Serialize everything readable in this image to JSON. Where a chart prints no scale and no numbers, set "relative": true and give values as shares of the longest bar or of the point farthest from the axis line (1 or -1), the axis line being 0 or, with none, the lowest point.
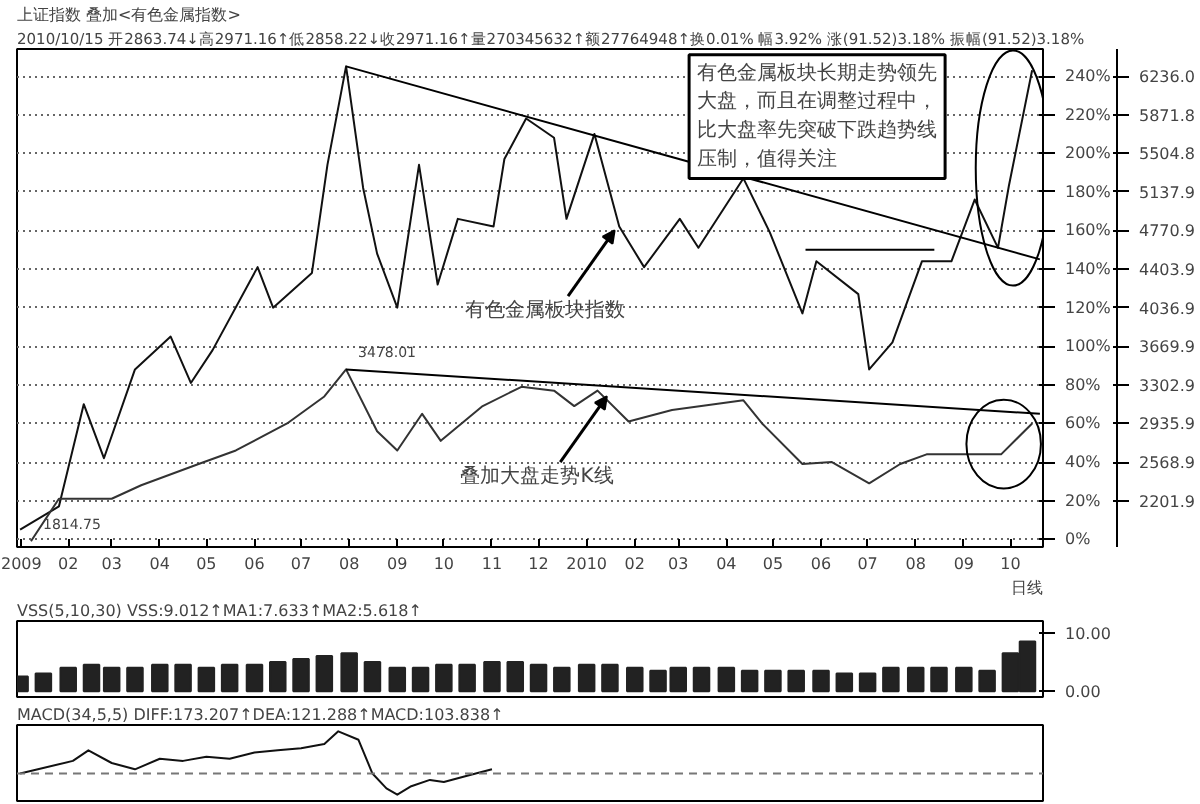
{
  "chart_data": [
    {
      "type": "line",
      "title": "上证指数 叠加<有色金属指数>",
      "subtitle": "2010/10/15 开2863.74↓高2971.16↑低2858.22↓收2971.16↑量270345632↑额27764948↑换0.01% 幅3.92% 涨(91.52)3.18% 振幅(91.52)3.18%",
      "xlim": [
        "2008-12-30",
        "2010-10-22"
      ],
      "xticks": [
        {
          "value": "2009-01",
          "label": "2009"
        },
        {
          "value": "2009-02",
          "label": "02"
        },
        {
          "value": "2009-03",
          "label": "03"
        },
        {
          "value": "2009-04",
          "label": "04"
        },
        {
          "value": "2009-05",
          "label": "05"
        },
        {
          "value": "2009-06",
          "label": "06"
        },
        {
          "value": "2009-07",
          "label": "07"
        },
        {
          "value": "2009-08",
          "label": "08"
        },
        {
          "value": "2009-09",
          "label": "09"
        },
        {
          "value": "2009-10",
          "label": "10"
        },
        {
          "value": "2009-11",
          "label": "11"
        },
        {
          "value": "2009-12",
          "label": "12"
        },
        {
          "value": "2010-01",
          "label": "2010"
        },
        {
          "value": "2010-02",
          "label": "02"
        },
        {
          "value": "2010-03",
          "label": "03"
        },
        {
          "value": "2010-04",
          "label": "04"
        },
        {
          "value": "2010-05",
          "label": "05"
        },
        {
          "value": "2010-06",
          "label": "06"
        },
        {
          "value": "2010-07",
          "label": "07"
        },
        {
          "value": "2010-08",
          "label": "08"
        },
        {
          "value": "2010-09",
          "label": "09"
        },
        {
          "value": "2010-10",
          "label": "10"
        }
      ],
      "ylim": [
        -4,
        254
      ],
      "yticks": [
        {
          "value": 0,
          "label": "0%"
        },
        {
          "value": 20,
          "label": "20%"
        },
        {
          "value": 40,
          "label": "40%"
        },
        {
          "value": 60,
          "label": "60%"
        },
        {
          "value": 80,
          "label": "80%"
        },
        {
          "value": 100,
          "label": "100%"
        },
        {
          "value": 120,
          "label": "120%"
        },
        {
          "value": 140,
          "label": "140%"
        },
        {
          "value": 160,
          "label": "160%"
        },
        {
          "value": 180,
          "label": "180%"
        },
        {
          "value": 200,
          "label": "200%"
        },
        {
          "value": 220,
          "label": "220%"
        },
        {
          "value": 240,
          "label": "240%"
        }
      ],
      "y2lim": [
        1761.5,
        6495.8
      ],
      "y2ticks": [
        {
          "value": 2201.9,
          "label": "2201.9"
        },
        {
          "value": 2568.9,
          "label": "2568.9"
        },
        {
          "value": 2935.9,
          "label": "2935.9"
        },
        {
          "value": 3302.9,
          "label": "3302.9"
        },
        {
          "value": 3669.9,
          "label": "3669.9"
        },
        {
          "value": 4036.9,
          "label": "4036.9"
        },
        {
          "value": 4403.9,
          "label": "4403.9"
        },
        {
          "value": 4770.9,
          "label": "4770.9"
        },
        {
          "value": 5137.9,
          "label": "5137.9"
        },
        {
          "value": 5504.8,
          "label": "5504.8"
        },
        {
          "value": 5871.8,
          "label": "5871.8"
        },
        {
          "value": 6236.0,
          "label": "6236.0"
        }
      ],
      "grid": "y",
      "marker": "none",
      "series": [
        {
          "color": "#111111",
          "x": [
            "2009-01-01",
            "2009-01-26",
            "2009-02-11",
            "2009-02-24",
            "2009-03-16",
            "2009-04-08",
            "2009-04-21",
            "2009-05-05",
            "2009-06-03",
            "2009-06-13",
            "2009-07-08",
            "2009-07-18",
            "2009-07-30",
            "2009-08-10",
            "2009-08-19",
            "2009-09-01",
            "2009-09-15",
            "2009-09-27",
            "2009-10-10",
            "2009-11-02",
            "2009-11-09",
            "2009-11-23",
            "2009-12-11",
            "2009-12-19",
            "2010-01-06",
            "2010-01-22",
            "2010-02-07",
            "2010-03-02",
            "2010-03-14",
            "2010-04-12",
            "2010-04-29",
            "2010-05-20",
            "2010-05-29",
            "2010-06-25",
            "2010-07-02",
            "2010-07-17",
            "2010-08-05",
            "2010-08-24",
            "2010-09-08",
            "2010-09-23",
            "2010-09-30",
            "2010-10-15"
          ],
          "values": [
            5,
            17,
            70,
            42,
            88,
            105,
            81,
            98,
            141,
            120,
            138,
            194,
            245,
            182,
            148,
            120,
            194,
            132,
            166,
            162,
            197,
            218,
            208,
            166,
            210,
            162,
            141,
            166,
            151,
            187,
            159,
            117,
            144,
            127,
            88,
            102,
            144,
            144,
            176,
            151,
            183,
            243
          ]
        },
        {
          "color": "#333333",
          "x": [
            "2009-01-08",
            "2009-01-26",
            "2009-03-01",
            "2009-03-20",
            "2009-04-26",
            "2009-05-20",
            "2009-06-22",
            "2009-07-16",
            "2009-07-30",
            "2009-08-19",
            "2009-09-01",
            "2009-09-17",
            "2009-09-29",
            "2009-10-26",
            "2009-11-20",
            "2009-12-11",
            "2009-12-24",
            "2010-01-08",
            "2010-01-28",
            "2010-02-25",
            "2010-04-12",
            "2010-04-24",
            "2010-05-20",
            "2010-06-08",
            "2010-07-02",
            "2010-07-22",
            "2010-08-08",
            "2010-09-10",
            "2010-09-25",
            "2010-10-15"
          ],
          "values": [
            -1,
            21,
            21,
            28,
            39,
            46,
            60,
            74,
            88,
            56,
            46,
            65,
            51,
            69,
            79,
            77,
            69,
            77,
            61,
            67,
            72,
            60,
            39,
            40,
            29,
            39,
            44,
            44,
            44,
            60
          ]
        },
        {
          "type": "line",
          "color": "#000000",
          "x": [
            "2009-07-30",
            "2010-10-20"
          ],
          "values": [
            245,
            145
          ]
        },
        {
          "type": "line",
          "color": "#000000",
          "x": [
            "2009-07-30",
            "2010-10-20"
          ],
          "values": [
            88,
            65
          ]
        },
        {
          "type": "line",
          "color": "#000000",
          "x": [
            "2010-05-22",
            "2010-08-13"
          ],
          "values": [
            150,
            150
          ]
        }
      ],
      "annotations": [
        "有色金属板块长期走势领先大盘，而且在调整过程中，比大盘率先突破下跌趋势线压制，值得关注",
        {
          "text": "有色金属板块指数",
          "x": "2010-01-19",
          "y": 160
        },
        {
          "text": "叠加大盘走势K线",
          "x": "2010-01-14",
          "y": 74
        },
        {
          "text": "3478.01",
          "x": "2009-07-30",
          "y": 88
        },
        {
          "text": "1814.75",
          "x": "2009-01-08",
          "y": -1
        },
        "日线"
      ]
    },
    {
      "type": "bar",
      "title": "VSS(5,10,30) VSS:9.012↑MA1:7.633↑MA2:5.618↑",
      "xlim": [
        "2008-12-30",
        "2010-10-22"
      ],
      "ylim": [
        -1,
        12
      ],
      "yticks": [
        {
          "value": 0,
          "label": "0.00"
        },
        {
          "value": 10,
          "label": "10.00"
        }
      ],
      "tick_labels": "y",
      "series": [
        {
          "color": "#222222",
          "x": [
            "2009-01-01",
            "2009-01-16",
            "2009-02-01",
            "2009-02-16",
            "2009-03-01",
            "2009-03-16",
            "2009-04-01",
            "2009-04-16",
            "2009-05-01",
            "2009-05-16",
            "2009-06-01",
            "2009-06-16",
            "2009-07-01",
            "2009-07-16",
            "2009-08-01",
            "2009-08-16",
            "2009-09-01",
            "2009-09-16",
            "2009-10-01",
            "2009-10-16",
            "2009-11-01",
            "2009-11-16",
            "2009-12-01",
            "2009-12-16",
            "2010-01-01",
            "2010-01-16",
            "2010-02-01",
            "2010-02-16",
            "2010-03-01",
            "2010-03-16",
            "2010-04-01",
            "2010-04-16",
            "2010-05-01",
            "2010-05-16",
            "2010-06-01",
            "2010-06-16",
            "2010-07-01",
            "2010-07-16",
            "2010-08-01",
            "2010-08-16",
            "2010-09-01",
            "2010-09-16",
            "2010-10-01",
            "2010-10-12"
          ],
          "values": [
            2.5,
            3.0,
            4.0,
            4.5,
            4.0,
            4.0,
            4.5,
            4.5,
            4.0,
            4.5,
            4.5,
            5.0,
            5.5,
            6.0,
            6.5,
            5.0,
            4.0,
            4.0,
            4.5,
            4.5,
            5.0,
            5.0,
            4.5,
            4.0,
            4.5,
            4.5,
            4.0,
            3.5,
            4.0,
            4.0,
            4.0,
            3.5,
            3.5,
            3.5,
            3.5,
            3.0,
            3.0,
            4.0,
            4.0,
            4.0,
            4.0,
            3.5,
            6.5,
            8.5
          ]
        }
      ]
    },
    {
      "type": "line",
      "title": "MACD(34,5,5) DIFF:173.207↑DEA:121.288↑MACD:103.838↑",
      "xlim": [
        "2008-12-30",
        "2010-10-22"
      ],
      "relative": true,
      "tick_labels": false,
      "marker": "none",
      "ref_lines": [
        {
          "axis": "y",
          "value": 0,
          "color": "#777777",
          "line_style": "dashed"
        }
      ],
      "series": [
        {
          "color": "#111111",
          "x": [
            "2009-01-01",
            "2009-02-04",
            "2009-02-14",
            "2009-03-01",
            "2009-03-16",
            "2009-04-01",
            "2009-04-16",
            "2009-05-01",
            "2009-05-16",
            "2009-06-01",
            "2009-06-16",
            "2009-07-01",
            "2009-07-16",
            "2009-07-25",
            "2009-08-07",
            "2009-08-16",
            "2009-08-25",
            "2009-09-01",
            "2009-09-10",
            "2009-09-22",
            "2009-10-01",
            "2009-10-16",
            "2009-11-01"
          ],
          "values": [
            0,
            0.3,
            0.55,
            0.25,
            0.1,
            0.35,
            0.3,
            0.4,
            0.35,
            0.5,
            0.55,
            0.6,
            0.7,
            1.0,
            0.8,
            0.0,
            -0.35,
            -0.5,
            -0.3,
            -0.15,
            -0.2,
            -0.05,
            0.1
          ]
        }
      ]
    }
  ]
}
